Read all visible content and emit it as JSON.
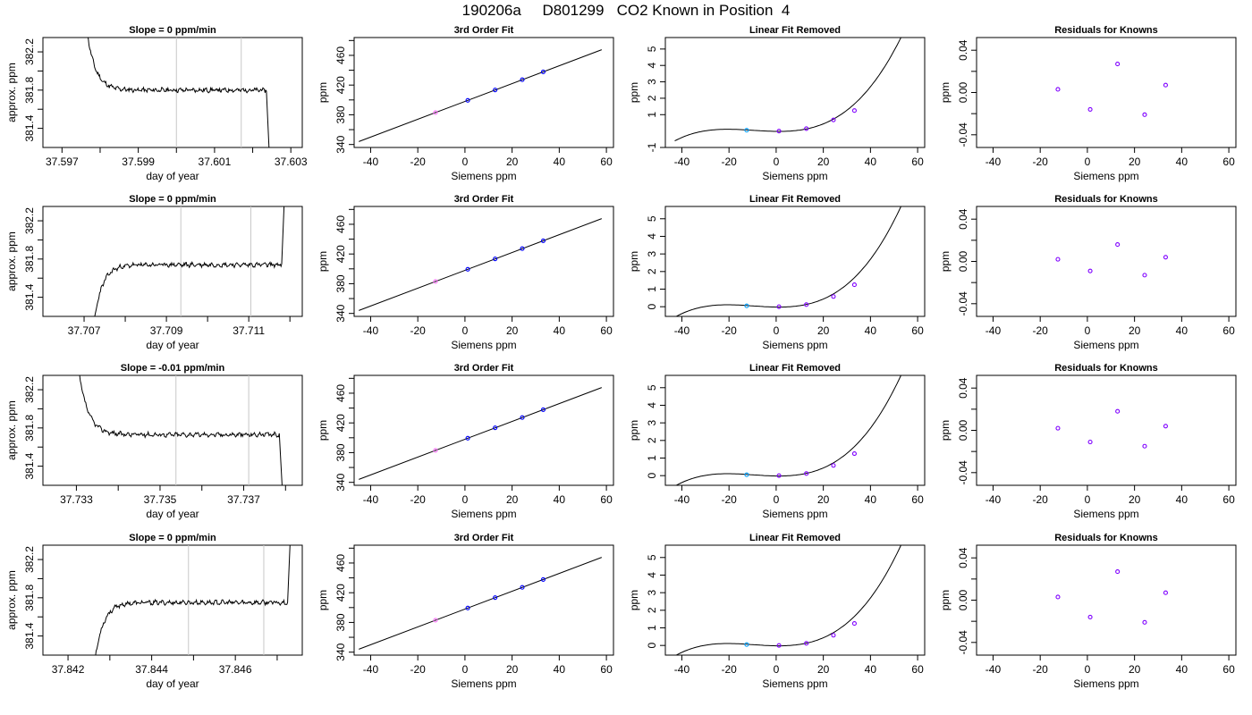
{
  "title": "190206a     D801299   CO2 Known in Position  4",
  "colors": {
    "curve": "#000000",
    "vline": "#c8c8c8",
    "point": "#0000ff",
    "resid": "#7f00ff",
    "cyan": "#00a0ff",
    "pink": "#ff70ff"
  },
  "chart_data": [
    {
      "type": "line",
      "row": 0,
      "col": 0,
      "title": "Slope =  0  ppm/min",
      "xlabel": "day of year",
      "ylabel": "approx. ppm",
      "xlim": [
        37.5965,
        37.6033
      ],
      "ylim": [
        381.2,
        382.35
      ],
      "xticks": [
        37.597,
        37.598,
        37.599,
        37.6,
        37.601,
        37.602,
        37.603
      ],
      "xtick_labels": [
        "37.597",
        "",
        "37.599",
        "",
        "37.601",
        "",
        "37.603"
      ],
      "yticks": [
        381.4,
        381.6,
        381.8,
        382.0,
        382.2
      ],
      "ytick_labels": [
        "381.4",
        "",
        "381.8",
        "",
        "382.2"
      ],
      "vlines": [
        37.6,
        37.6017
      ],
      "trace": {
        "x0": 37.5976,
        "x1": 37.6025,
        "start": 382.6,
        "base": 381.8,
        "tau": 0.00022,
        "end": 381.1,
        "drop": 37.60236,
        "seed": 11
      }
    },
    {
      "type": "line",
      "row": 1,
      "col": 0,
      "title": "Slope =  0  ppm/min",
      "xlabel": "day of year",
      "ylabel": "approx. ppm",
      "xlim": [
        37.706,
        37.7123
      ],
      "ylim": [
        381.2,
        382.35
      ],
      "xticks": [
        37.707,
        37.708,
        37.709,
        37.71,
        37.711,
        37.712
      ],
      "xtick_labels": [
        "37.707",
        "",
        "37.709",
        "",
        "37.711",
        ""
      ],
      "yticks": [
        381.4,
        381.6,
        381.8,
        382.0,
        382.2
      ],
      "ytick_labels": [
        "381.4",
        "",
        "381.8",
        "",
        "382.2"
      ],
      "vlines": [
        37.70935,
        37.71105
      ],
      "trace": {
        "x0": 37.7072,
        "x1": 37.7121,
        "start": 381.0,
        "base": 381.74,
        "tau": 0.0002,
        "end": 382.6,
        "drop": 37.7118,
        "seed": 23
      }
    },
    {
      "type": "line",
      "row": 2,
      "col": 0,
      "title": "Slope =  -0.01  ppm/min",
      "xlabel": "day of year",
      "ylabel": "approx. ppm",
      "xlim": [
        37.7322,
        37.7384
      ],
      "ylim": [
        381.2,
        382.35
      ],
      "xticks": [
        37.733,
        37.734,
        37.735,
        37.736,
        37.737,
        37.738
      ],
      "xtick_labels": [
        "37.733",
        "",
        "37.735",
        "",
        "37.737",
        ""
      ],
      "yticks": [
        381.4,
        381.6,
        381.8,
        382.0,
        382.2
      ],
      "ytick_labels": [
        "381.4",
        "",
        "381.8",
        "",
        "382.2"
      ],
      "vlines": [
        37.73538,
        37.73712
      ],
      "trace": {
        "x0": 37.733,
        "x1": 37.738,
        "start": 382.6,
        "base": 381.73,
        "tau": 0.00022,
        "end": 381.1,
        "drop": 37.73785,
        "seed": 37
      }
    },
    {
      "type": "line",
      "row": 3,
      "col": 0,
      "title": "Slope =  0  ppm/min",
      "xlabel": "day of year",
      "ylabel": "approx. ppm",
      "xlim": [
        37.8414,
        37.8476
      ],
      "ylim": [
        381.2,
        382.35
      ],
      "xticks": [
        37.842,
        37.843,
        37.844,
        37.845,
        37.846,
        37.847
      ],
      "xtick_labels": [
        "37.842",
        "",
        "37.844",
        "",
        "37.846",
        ""
      ],
      "yticks": [
        381.4,
        381.6,
        381.8,
        382.0,
        382.2
      ],
      "ytick_labels": [
        "381.4",
        "",
        "381.8",
        "",
        "382.2"
      ],
      "vlines": [
        37.84488,
        37.84668
      ],
      "trace": {
        "x0": 37.8426,
        "x1": 37.8474,
        "start": 381.0,
        "base": 381.75,
        "tau": 0.0002,
        "end": 382.6,
        "drop": 37.84725,
        "seed": 53
      }
    },
    {
      "type": "scatter",
      "row": 0,
      "col": 1,
      "title": "3rd Order Fit",
      "xlabel": "Siemens ppm",
      "ylabel": "ppm",
      "xlim": [
        -47,
        63
      ],
      "ylim": [
        336,
        484
      ],
      "xticks": [
        -40,
        -20,
        0,
        20,
        40,
        60
      ],
      "xtick_labels": [
        "-40",
        "-20",
        "0",
        "20",
        "40",
        "60"
      ],
      "yticks": [
        340,
        360,
        380,
        400,
        420,
        440,
        460,
        480
      ],
      "ytick_labels": [
        "340",
        "",
        "380",
        "",
        "420",
        "",
        "460",
        ""
      ],
      "line": {
        "x0": -45,
        "x1": 58,
        "slope": 1.2,
        "intercept": 398
      },
      "points": {
        "x": [
          -12.5,
          1.2,
          12.8,
          24.3,
          33.2
        ],
        "y": [
          383,
          399.4,
          413.4,
          427.2,
          437.8
        ],
        "colors": [
          "#ff70ff",
          "#0000ff",
          "#0000ff",
          "#0000ff",
          "#0000ff"
        ]
      }
    },
    {
      "type": "scatter",
      "row": 1,
      "col": 1,
      "title": "3rd Order Fit",
      "xlabel": "Siemens ppm",
      "ylabel": "ppm",
      "xlim": [
        -47,
        63
      ],
      "ylim": [
        336,
        484
      ],
      "xticks": [
        -40,
        -20,
        0,
        20,
        40,
        60
      ],
      "xtick_labels": [
        "-40",
        "-20",
        "0",
        "20",
        "40",
        "60"
      ],
      "yticks": [
        340,
        360,
        380,
        400,
        420,
        440,
        460,
        480
      ],
      "ytick_labels": [
        "340",
        "",
        "380",
        "",
        "420",
        "",
        "460",
        ""
      ],
      "line": {
        "x0": -45,
        "x1": 58,
        "slope": 1.2,
        "intercept": 398
      },
      "points": {
        "x": [
          -12.5,
          1.2,
          12.8,
          24.3,
          33.2
        ],
        "y": [
          383,
          399.4,
          413.4,
          427.2,
          437.8
        ],
        "colors": [
          "#ff70ff",
          "#0000ff",
          "#0000ff",
          "#0000ff",
          "#0000ff"
        ]
      }
    },
    {
      "type": "scatter",
      "row": 2,
      "col": 1,
      "title": "3rd Order Fit",
      "xlabel": "Siemens ppm",
      "ylabel": "ppm",
      "xlim": [
        -47,
        63
      ],
      "ylim": [
        336,
        484
      ],
      "xticks": [
        -40,
        -20,
        0,
        20,
        40,
        60
      ],
      "xtick_labels": [
        "-40",
        "-20",
        "0",
        "20",
        "40",
        "60"
      ],
      "yticks": [
        340,
        360,
        380,
        400,
        420,
        440,
        460,
        480
      ],
      "ytick_labels": [
        "340",
        "",
        "380",
        "",
        "420",
        "",
        "460",
        ""
      ],
      "line": {
        "x0": -45,
        "x1": 58,
        "slope": 1.2,
        "intercept": 398
      },
      "points": {
        "x": [
          -12.5,
          1.2,
          12.8,
          24.3,
          33.2
        ],
        "y": [
          383,
          399.4,
          413.4,
          427.2,
          437.8
        ],
        "colors": [
          "#ff70ff",
          "#0000ff",
          "#0000ff",
          "#0000ff",
          "#0000ff"
        ]
      }
    },
    {
      "type": "scatter",
      "row": 3,
      "col": 1,
      "title": "3rd Order Fit",
      "xlabel": "Siemens ppm",
      "ylabel": "ppm",
      "xlim": [
        -47,
        63
      ],
      "ylim": [
        336,
        484
      ],
      "xticks": [
        -40,
        -20,
        0,
        20,
        40,
        60
      ],
      "xtick_labels": [
        "-40",
        "-20",
        "0",
        "20",
        "40",
        "60"
      ],
      "yticks": [
        340,
        360,
        380,
        400,
        420,
        440,
        460,
        480
      ],
      "ytick_labels": [
        "340",
        "",
        "380",
        "",
        "420",
        "",
        "460",
        ""
      ],
      "line": {
        "x0": -45,
        "x1": 58,
        "slope": 1.2,
        "intercept": 398
      },
      "points": {
        "x": [
          -12.5,
          1.2,
          12.8,
          24.3,
          33.2
        ],
        "y": [
          383,
          399.4,
          413.4,
          427.2,
          437.8
        ],
        "colors": [
          "#ff70ff",
          "#0000ff",
          "#0000ff",
          "#0000ff",
          "#0000ff"
        ]
      }
    },
    {
      "type": "scatter",
      "row": 0,
      "col": 2,
      "title": "Linear Fit Removed",
      "xlabel": "Siemens ppm",
      "ylabel": "ppm",
      "xlim": [
        -47,
        63
      ],
      "ylim": [
        -1,
        5.7
      ],
      "xticks": [
        -40,
        -20,
        0,
        20,
        40,
        60
      ],
      "xtick_labels": [
        "-40",
        "-20",
        "0",
        "20",
        "40",
        "60"
      ],
      "yticks": [
        -1,
        1,
        2,
        3,
        4,
        5
      ],
      "ytick_labels": [
        "-1",
        "1",
        "2",
        "3",
        "4",
        "5"
      ],
      "curve": {
        "x0": -43,
        "x1": 58,
        "a": 2.542e-05,
        "b": 0.000734,
        "c": -0.002,
        "d": -0.02
      },
      "points": {
        "x": [
          -12.5,
          1.2,
          12.8,
          24.3,
          33.2
        ],
        "y": [
          0.05,
          0.0,
          0.15,
          0.68,
          1.25
        ],
        "colors": [
          "#00a0ff",
          "#7f00ff",
          "#7f00ff",
          "#7f00ff",
          "#7f00ff"
        ]
      }
    },
    {
      "type": "scatter",
      "row": 1,
      "col": 2,
      "title": "Linear Fit Removed",
      "xlabel": "Siemens ppm",
      "ylabel": "ppm",
      "xlim": [
        -47,
        63
      ],
      "ylim": [
        -0.55,
        5.7
      ],
      "xticks": [
        -40,
        -20,
        0,
        20,
        40,
        60
      ],
      "xtick_labels": [
        "-40",
        "-20",
        "0",
        "20",
        "40",
        "60"
      ],
      "yticks": [
        0,
        1,
        2,
        3,
        4,
        5
      ],
      "ytick_labels": [
        "0",
        "1",
        "2",
        "3",
        "4",
        "5"
      ],
      "curve": {
        "x0": -43,
        "x1": 58,
        "a": 2.542e-05,
        "b": 0.000734,
        "c": -0.002,
        "d": -0.02
      },
      "points": {
        "x": [
          -12.5,
          1.2,
          12.8,
          24.3,
          33.2
        ],
        "y": [
          0.05,
          0.0,
          0.12,
          0.58,
          1.25
        ],
        "colors": [
          "#00a0ff",
          "#7f00ff",
          "#7f00ff",
          "#7f00ff",
          "#7f00ff"
        ]
      }
    },
    {
      "type": "scatter",
      "row": 2,
      "col": 2,
      "title": "Linear Fit Removed",
      "xlabel": "Siemens ppm",
      "ylabel": "ppm",
      "xlim": [
        -47,
        63
      ],
      "ylim": [
        -0.55,
        5.7
      ],
      "xticks": [
        -40,
        -20,
        0,
        20,
        40,
        60
      ],
      "xtick_labels": [
        "-40",
        "-20",
        "0",
        "20",
        "40",
        "60"
      ],
      "yticks": [
        0,
        1,
        2,
        3,
        4,
        5
      ],
      "ytick_labels": [
        "0",
        "1",
        "2",
        "3",
        "4",
        "5"
      ],
      "curve": {
        "x0": -43,
        "x1": 58,
        "a": 2.542e-05,
        "b": 0.000734,
        "c": -0.002,
        "d": -0.02
      },
      "points": {
        "x": [
          -12.5,
          1.2,
          12.8,
          24.3,
          33.2
        ],
        "y": [
          0.05,
          0.0,
          0.12,
          0.58,
          1.25
        ],
        "colors": [
          "#00a0ff",
          "#7f00ff",
          "#7f00ff",
          "#7f00ff",
          "#7f00ff"
        ]
      }
    },
    {
      "type": "scatter",
      "row": 3,
      "col": 2,
      "title": "Linear Fit Removed",
      "xlabel": "Siemens ppm",
      "ylabel": "ppm",
      "xlim": [
        -47,
        63
      ],
      "ylim": [
        -0.55,
        5.7
      ],
      "xticks": [
        -40,
        -20,
        0,
        20,
        40,
        60
      ],
      "xtick_labels": [
        "-40",
        "-20",
        "0",
        "20",
        "40",
        "60"
      ],
      "yticks": [
        0,
        1,
        2,
        3,
        4,
        5
      ],
      "ytick_labels": [
        "0",
        "1",
        "2",
        "3",
        "4",
        "5"
      ],
      "curve": {
        "x0": -43,
        "x1": 58,
        "a": 2.542e-05,
        "b": 0.000734,
        "c": -0.002,
        "d": -0.02
      },
      "points": {
        "x": [
          -12.5,
          1.2,
          12.8,
          24.3,
          33.2
        ],
        "y": [
          0.05,
          0.0,
          0.12,
          0.58,
          1.25
        ],
        "colors": [
          "#00a0ff",
          "#7f00ff",
          "#7f00ff",
          "#7f00ff",
          "#7f00ff"
        ]
      }
    },
    {
      "type": "scatter",
      "row": 0,
      "col": 3,
      "title": "Residuals for Knowns",
      "xlabel": "Siemens ppm",
      "ylabel": "ppm",
      "xlim": [
        -47,
        63
      ],
      "ylim": [
        -0.052,
        0.052
      ],
      "xticks": [
        -40,
        -20,
        0,
        20,
        40,
        60
      ],
      "xtick_labels": [
        "-40",
        "-20",
        "0",
        "20",
        "40",
        "60"
      ],
      "yticks": [
        -0.04,
        -0.02,
        0,
        0.02,
        0.04
      ],
      "ytick_labels": [
        "-0.04",
        "",
        "0.00",
        "",
        "0.04"
      ],
      "points": {
        "x": [
          -12.5,
          1.2,
          12.8,
          24.3,
          33.2
        ],
        "y": [
          0.003,
          -0.016,
          0.027,
          -0.021,
          0.007
        ],
        "colors": [
          "#7f00ff",
          "#7f00ff",
          "#7f00ff",
          "#7f00ff",
          "#7f00ff"
        ]
      }
    },
    {
      "type": "scatter",
      "row": 1,
      "col": 3,
      "title": "Residuals for Knowns",
      "xlabel": "Siemens ppm",
      "ylabel": "ppm",
      "xlim": [
        -47,
        63
      ],
      "ylim": [
        -0.052,
        0.052
      ],
      "xticks": [
        -40,
        -20,
        0,
        20,
        40,
        60
      ],
      "xtick_labels": [
        "-40",
        "-20",
        "0",
        "20",
        "40",
        "60"
      ],
      "yticks": [
        -0.04,
        -0.02,
        0,
        0.02,
        0.04
      ],
      "ytick_labels": [
        "-0.04",
        "",
        "0.00",
        "",
        "0.04"
      ],
      "points": {
        "x": [
          -12.5,
          1.2,
          12.8,
          24.3,
          33.2
        ],
        "y": [
          0.002,
          -0.009,
          0.016,
          -0.013,
          0.004
        ],
        "colors": [
          "#7f00ff",
          "#7f00ff",
          "#7f00ff",
          "#7f00ff",
          "#7f00ff"
        ]
      }
    },
    {
      "type": "scatter",
      "row": 2,
      "col": 3,
      "title": "Residuals for Knowns",
      "xlabel": "Siemens ppm",
      "ylabel": "ppm",
      "xlim": [
        -47,
        63
      ],
      "ylim": [
        -0.052,
        0.052
      ],
      "xticks": [
        -40,
        -20,
        0,
        20,
        40,
        60
      ],
      "xtick_labels": [
        "-40",
        "-20",
        "0",
        "20",
        "40",
        "60"
      ],
      "yticks": [
        -0.04,
        -0.02,
        0,
        0.02,
        0.04
      ],
      "ytick_labels": [
        "-0.04",
        "",
        "0.00",
        "",
        "0.04"
      ],
      "points": {
        "x": [
          -12.5,
          1.2,
          12.8,
          24.3,
          33.2
        ],
        "y": [
          0.002,
          -0.011,
          0.018,
          -0.015,
          0.004
        ],
        "colors": [
          "#7f00ff",
          "#7f00ff",
          "#7f00ff",
          "#7f00ff",
          "#7f00ff"
        ]
      }
    },
    {
      "type": "scatter",
      "row": 3,
      "col": 3,
      "title": "Residuals for Knowns",
      "xlabel": "Siemens ppm",
      "ylabel": "ppm",
      "xlim": [
        -47,
        63
      ],
      "ylim": [
        -0.052,
        0.052
      ],
      "xticks": [
        -40,
        -20,
        0,
        20,
        40,
        60
      ],
      "xtick_labels": [
        "-40",
        "-20",
        "0",
        "20",
        "40",
        "60"
      ],
      "yticks": [
        -0.04,
        -0.02,
        0,
        0.02,
        0.04
      ],
      "ytick_labels": [
        "-0.04",
        "",
        "0.00",
        "",
        "0.04"
      ],
      "points": {
        "x": [
          -12.5,
          1.2,
          12.8,
          24.3,
          33.2
        ],
        "y": [
          0.003,
          -0.016,
          0.027,
          -0.021,
          0.007
        ],
        "colors": [
          "#7f00ff",
          "#7f00ff",
          "#7f00ff",
          "#7f00ff",
          "#7f00ff"
        ]
      }
    }
  ]
}
